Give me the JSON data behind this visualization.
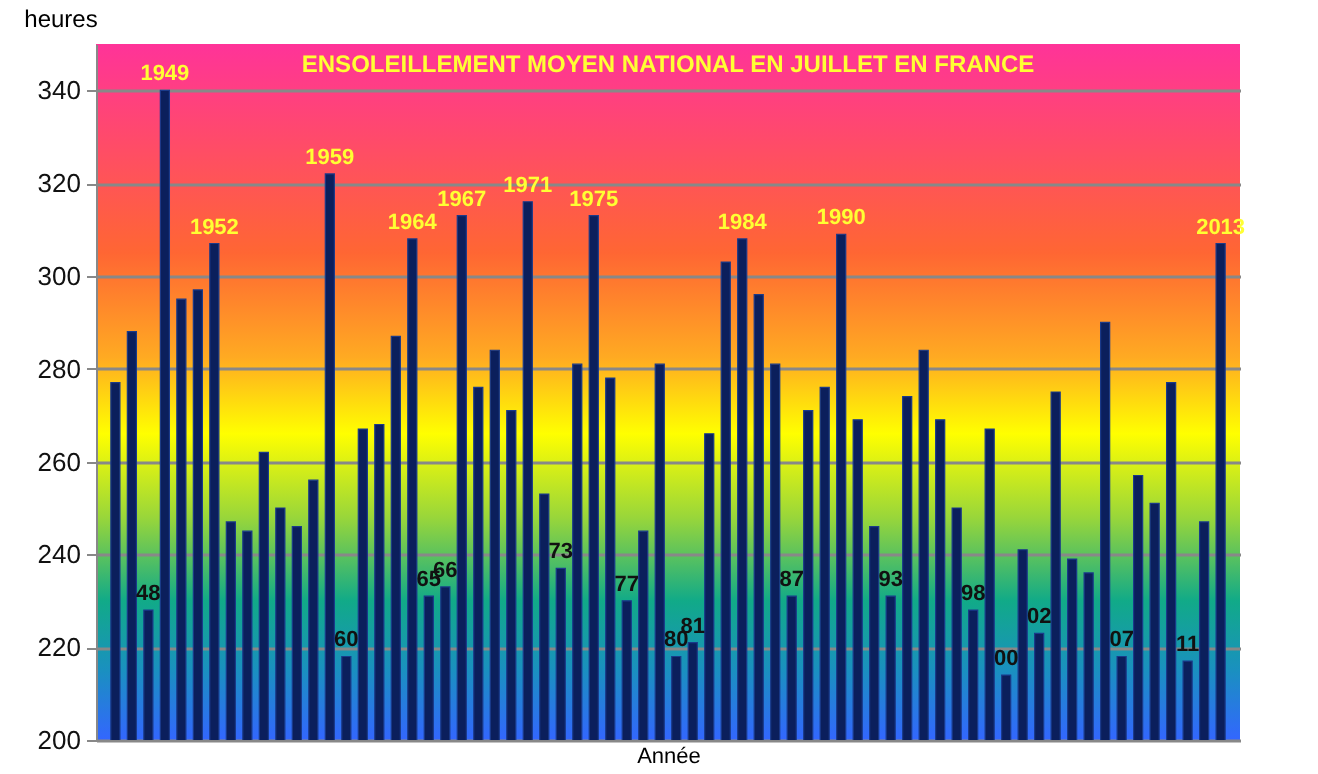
{
  "chart_data": {
    "type": "bar",
    "title": "ENSOLEILLEMENT MOYEN NATIONAL EN JUILLET EN FRANCE",
    "xlabel": "Année",
    "ylabel": "heures",
    "categories": [
      null,
      null,
      "48",
      "1949",
      null,
      null,
      "1952",
      null,
      null,
      null,
      null,
      null,
      null,
      "1959",
      "60",
      null,
      null,
      null,
      "1964",
      "65",
      "66",
      "1967",
      null,
      null,
      null,
      "1971",
      null,
      "73",
      null,
      "1975",
      null,
      "77",
      null,
      null,
      "80",
      "81",
      null,
      null,
      "1984",
      null,
      null,
      "87",
      null,
      null,
      "1990",
      null,
      null,
      "93",
      null,
      null,
      null,
      null,
      "98",
      null,
      "00",
      null,
      "02",
      null,
      null,
      null,
      null,
      "07",
      null,
      null,
      null,
      "11",
      null,
      "2013"
    ],
    "values": [
      277,
      288,
      228,
      340,
      295,
      297,
      307,
      247,
      245,
      262,
      250,
      246,
      256,
      322,
      218,
      267,
      268,
      287,
      308,
      231,
      233,
      313,
      276,
      284,
      271,
      316,
      253,
      237,
      281,
      313,
      278,
      230,
      245,
      281,
      218,
      221,
      266,
      303,
      308,
      296,
      281,
      231,
      271,
      276,
      309,
      269,
      246,
      231,
      274,
      284,
      269,
      250,
      228,
      267,
      214,
      241,
      223,
      275,
      239,
      236,
      290,
      218,
      257,
      251,
      277,
      217,
      247,
      307
    ],
    "color": "#0b1f5c",
    "ylim": [
      200,
      350
    ],
    "yticks": [
      200,
      220,
      240,
      260,
      280,
      300,
      320,
      340
    ],
    "grid": "y"
  }
}
